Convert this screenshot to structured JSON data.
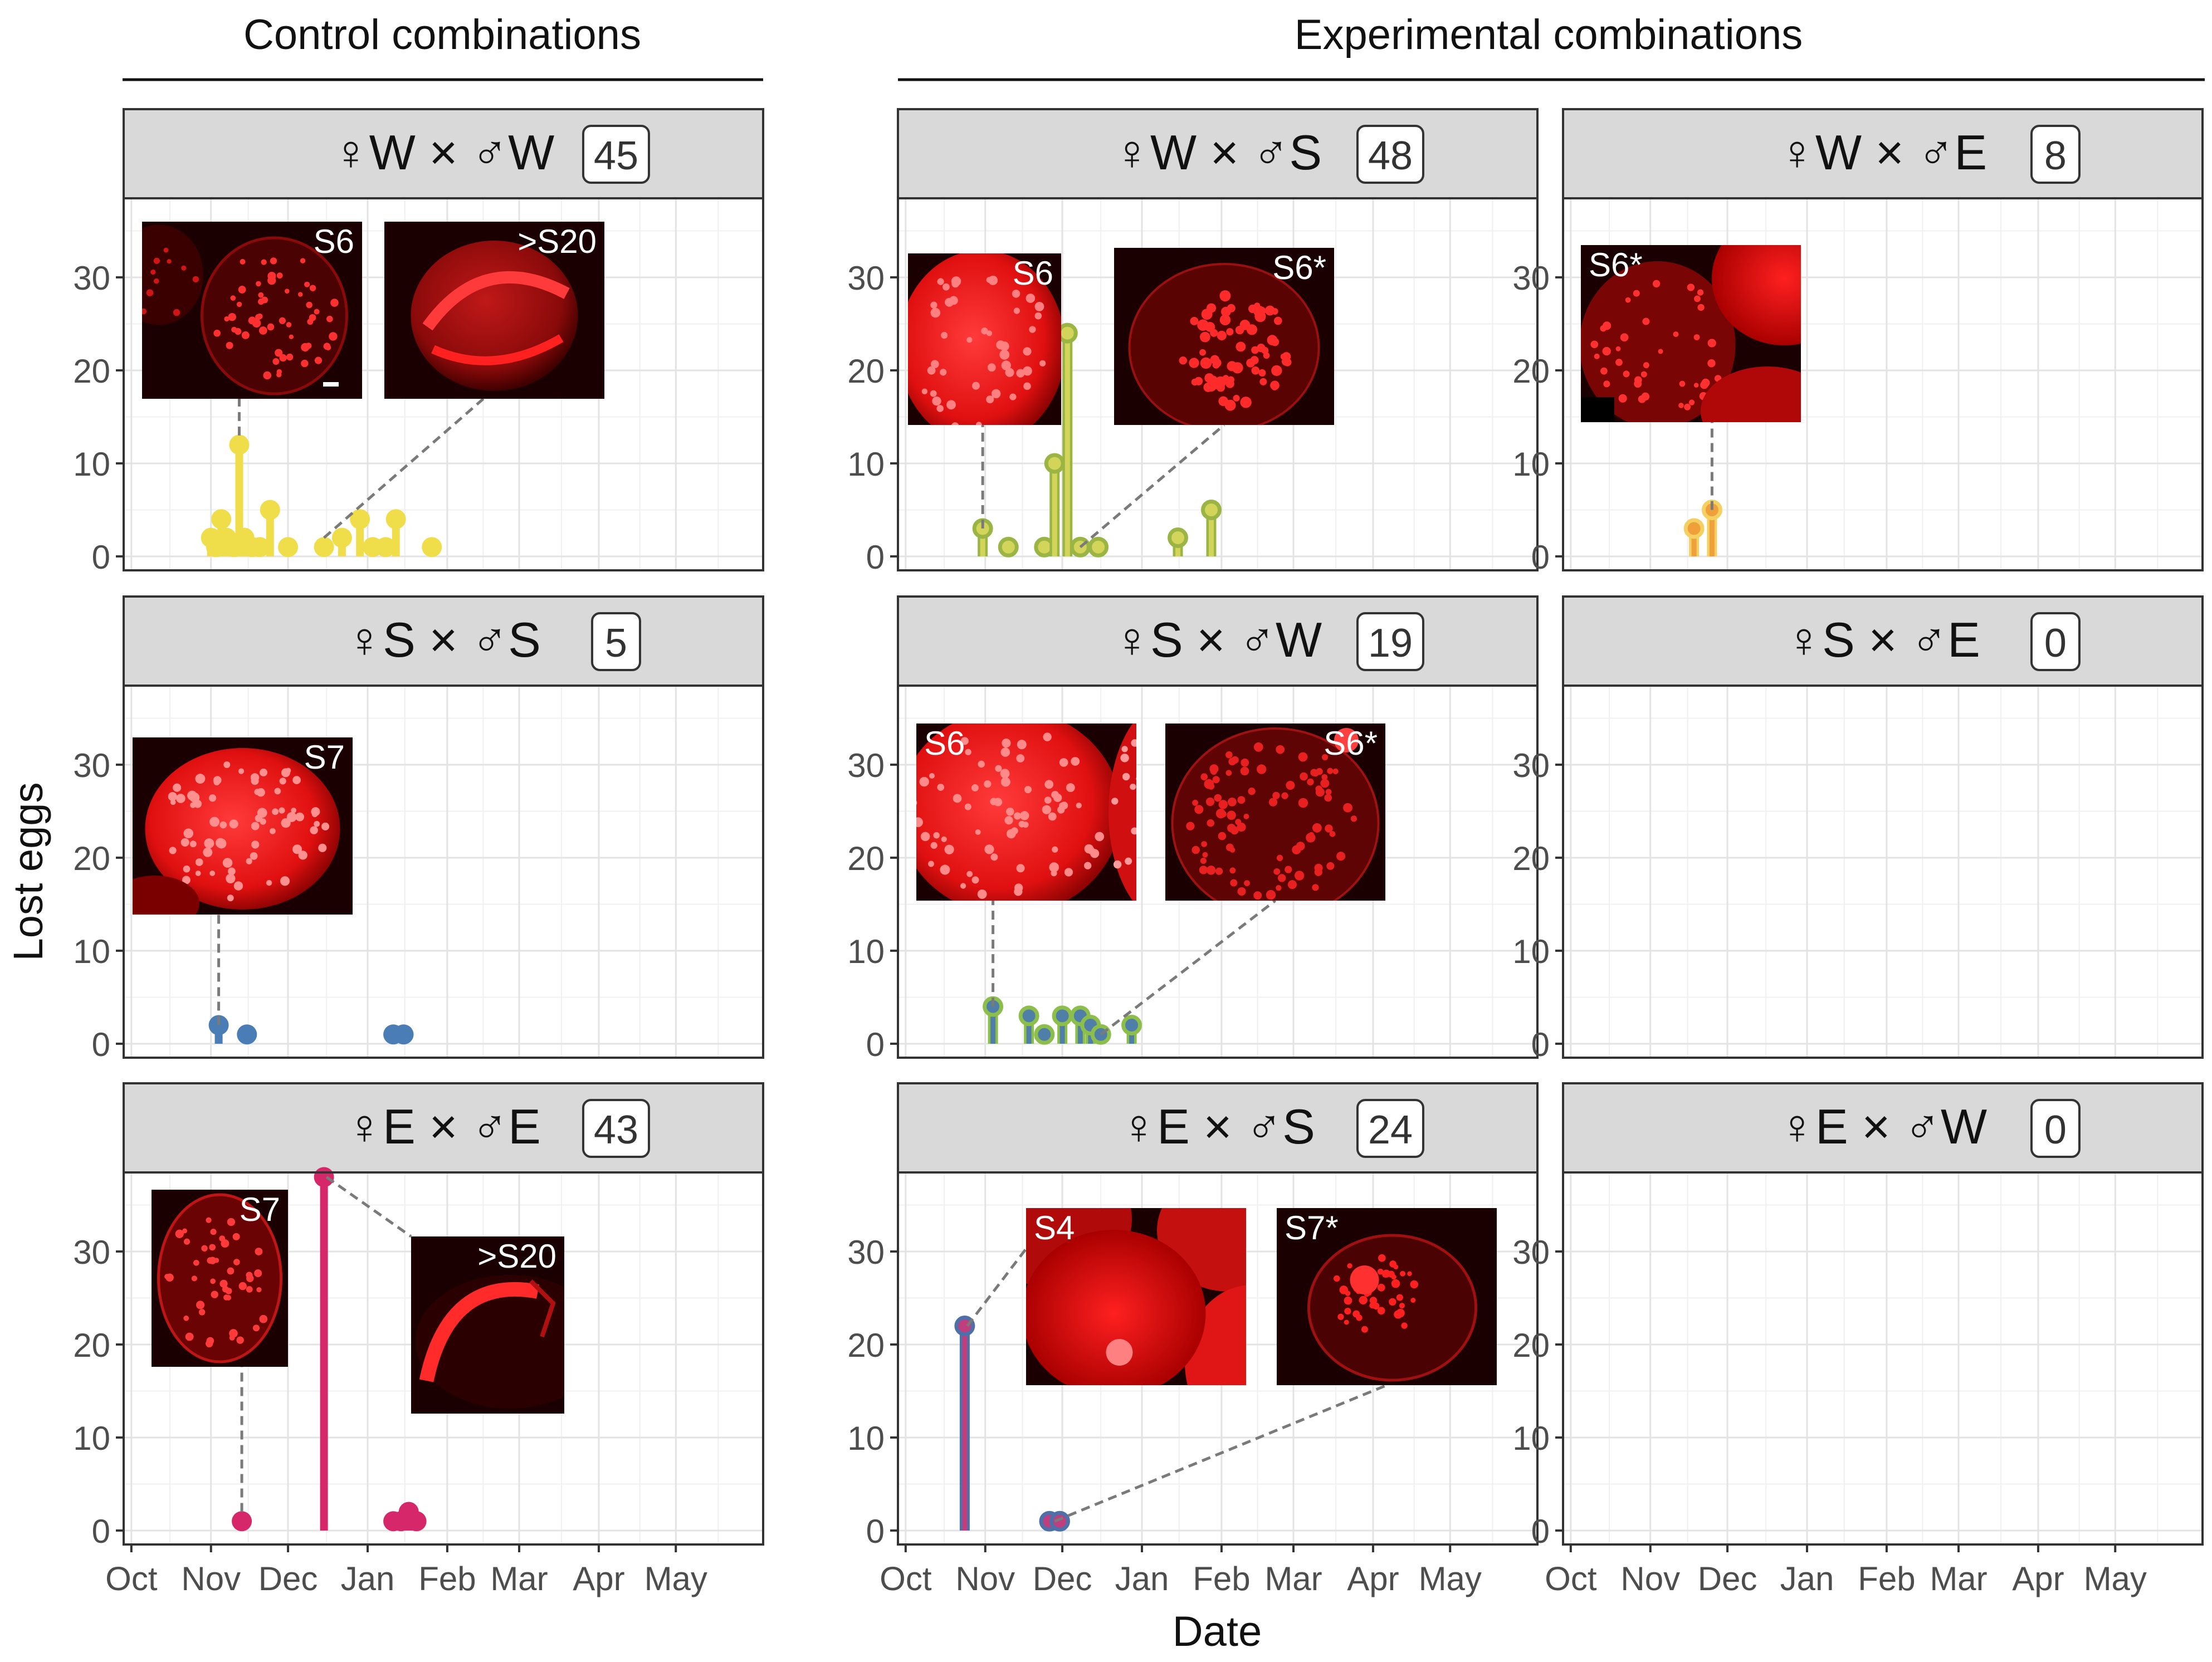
{
  "figure": {
    "y_axis_label": "Lost eggs",
    "x_axis_label": "Date",
    "group_headers": [
      "Control combinations",
      "Experimental combinations"
    ],
    "month_ticks": [
      "Oct",
      "Nov",
      "Dec",
      "Jan",
      "Feb",
      "Mar",
      "Apr",
      "May"
    ],
    "y_ticks": [
      0,
      10,
      20,
      30
    ]
  },
  "chart_data": [
    {
      "type": "lollipop",
      "id": "WxW",
      "female": "W",
      "male": "W",
      "count": "45",
      "color": "#EFDD4A",
      "outline": "#EFDD4A",
      "xlabel": "Date",
      "ylabel": "Lost eggs",
      "ylim": [
        0,
        38
      ],
      "points": [
        {
          "x": "Nov 1",
          "y": 2
        },
        {
          "x": "Nov 3",
          "y": 1
        },
        {
          "x": "Nov 5",
          "y": 4
        },
        {
          "x": "Nov 7",
          "y": 2
        },
        {
          "x": "Nov 10",
          "y": 1
        },
        {
          "x": "Nov 12",
          "y": 12
        },
        {
          "x": "Nov 14",
          "y": 2
        },
        {
          "x": "Nov 17",
          "y": 1
        },
        {
          "x": "Nov 20",
          "y": 1
        },
        {
          "x": "Nov 24",
          "y": 5
        },
        {
          "x": "Dec 1",
          "y": 1
        },
        {
          "x": "Dec 15",
          "y": 1
        },
        {
          "x": "Dec 22",
          "y": 2
        },
        {
          "x": "Dec 29",
          "y": 4
        },
        {
          "x": "Jan 3",
          "y": 1
        },
        {
          "x": "Jan 8",
          "y": 1
        },
        {
          "x": "Jan 12",
          "y": 4
        },
        {
          "x": "Jan 26",
          "y": 1
        }
      ],
      "insets": [
        {
          "label": "S6",
          "kind": "s6a",
          "x1": "Nov 12",
          "y1": 13
        },
        {
          "label": ">S20",
          "kind": "s20a",
          "x1": "Dec 15",
          "y1": 2
        }
      ]
    },
    {
      "type": "lollipop",
      "id": "WxS",
      "female": "W",
      "male": "S",
      "count": "48",
      "color": "#D2D55A",
      "outline": "#9BB545",
      "xlabel": "Date",
      "ylabel": "Lost eggs",
      "ylim": [
        0,
        38
      ],
      "points": [
        {
          "x": "Oct 31",
          "y": 3
        },
        {
          "x": "Nov 10",
          "y": 1
        },
        {
          "x": "Nov 24",
          "y": 1
        },
        {
          "x": "Nov 28",
          "y": 10
        },
        {
          "x": "Dec 3",
          "y": 24
        },
        {
          "x": "Dec 8",
          "y": 1
        },
        {
          "x": "Dec 15",
          "y": 1
        },
        {
          "x": "Jan 15",
          "y": 2
        },
        {
          "x": "Jan 28",
          "y": 5
        }
      ],
      "insets": [
        {
          "label": "S6",
          "kind": "s6b",
          "x1": "Oct 31",
          "y1": 3
        },
        {
          "label": "S6*",
          "kind": "s6star",
          "x1": "Dec 8",
          "y1": 1
        }
      ]
    },
    {
      "type": "lollipop",
      "id": "WxE",
      "female": "W",
      "male": "E",
      "count": "8",
      "color": "#F0A03A",
      "outline": "#F4D060",
      "xlabel": "Date",
      "ylabel": "Lost eggs",
      "ylim": [
        0,
        38
      ],
      "points": [
        {
          "x": "Nov 18",
          "y": 3
        },
        {
          "x": "Nov 25",
          "y": 5
        }
      ],
      "insets": [
        {
          "label": "S6*",
          "kind": "s6cluster",
          "x1": "Nov 25",
          "y1": 5
        }
      ]
    },
    {
      "type": "lollipop",
      "id": "SxS",
      "female": "S",
      "male": "S",
      "count": "5",
      "color": "#4A7DB5",
      "outline": "#4A7DB5",
      "xlabel": "Date",
      "ylabel": "Lost eggs",
      "ylim": [
        0,
        38
      ],
      "points": [
        {
          "x": "Nov 4",
          "y": 2
        },
        {
          "x": "Nov 15",
          "y": 1
        },
        {
          "x": "Jan 11",
          "y": 1
        },
        {
          "x": "Jan 15",
          "y": 1
        }
      ],
      "insets": [
        {
          "label": "S7",
          "kind": "s7a",
          "x1": "Nov 4",
          "y1": 2
        }
      ]
    },
    {
      "type": "lollipop",
      "id": "SxW",
      "female": "S",
      "male": "W",
      "count": "19",
      "color": "#4F7FA8",
      "outline": "#8CBF4A",
      "xlabel": "Date",
      "ylabel": "Lost eggs",
      "ylim": [
        0,
        38
      ],
      "points": [
        {
          "x": "Nov 4",
          "y": 4
        },
        {
          "x": "Nov 18",
          "y": 3
        },
        {
          "x": "Nov 24",
          "y": 1
        },
        {
          "x": "Dec 1",
          "y": 3
        },
        {
          "x": "Dec 8",
          "y": 3
        },
        {
          "x": "Dec 12",
          "y": 2
        },
        {
          "x": "Dec 16",
          "y": 1
        },
        {
          "x": "Dec 28",
          "y": 2
        }
      ],
      "insets": [
        {
          "label": "S6",
          "kind": "s6c",
          "x1": "Nov 4",
          "y1": 4
        },
        {
          "label": "S6*",
          "kind": "s6star2",
          "x1": "Dec 16",
          "y1": 1
        }
      ]
    },
    {
      "type": "lollipop",
      "id": "SxE",
      "female": "S",
      "male": "E",
      "count": "0",
      "color": "#888888",
      "outline": "#888888",
      "xlabel": "Date",
      "ylabel": "Lost eggs",
      "ylim": [
        0,
        38
      ],
      "points": [],
      "insets": []
    },
    {
      "type": "lollipop",
      "id": "ExE",
      "female": "E",
      "male": "E",
      "count": "43",
      "color": "#D6276A",
      "outline": "#D6276A",
      "xlabel": "Date",
      "ylabel": "Lost eggs",
      "ylim": [
        0,
        38
      ],
      "points": [
        {
          "x": "Nov 13",
          "y": 1
        },
        {
          "x": "Dec 15",
          "y": 38
        },
        {
          "x": "Jan 11",
          "y": 1
        },
        {
          "x": "Jan 14",
          "y": 1
        },
        {
          "x": "Jan 17",
          "y": 2
        },
        {
          "x": "Jan 20",
          "y": 1
        }
      ],
      "insets": [
        {
          "label": "S7",
          "kind": "s7b",
          "x1": "Nov 13",
          "y1": 2
        },
        {
          "label": ">S20",
          "kind": "s20b",
          "x1": "Dec 16",
          "y1": 38
        }
      ]
    },
    {
      "type": "lollipop",
      "id": "ExS",
      "female": "E",
      "male": "S",
      "count": "24",
      "color": "#C03D7E",
      "outline": "#4F6FA8",
      "xlabel": "Date",
      "ylabel": "Lost eggs",
      "ylim": [
        0,
        38
      ],
      "points": [
        {
          "x": "Oct 24",
          "y": 22
        },
        {
          "x": "Nov 26",
          "y": 1
        },
        {
          "x": "Nov 30",
          "y": 1
        }
      ],
      "insets": [
        {
          "label": "S4",
          "kind": "s4",
          "x1": "Oct 25",
          "y1": 22
        },
        {
          "label": "S7*",
          "kind": "s7star",
          "x1": "Nov 28",
          "y1": 1
        }
      ]
    },
    {
      "type": "lollipop",
      "id": "ExW",
      "female": "E",
      "male": "W",
      "count": "0",
      "color": "#888888",
      "outline": "#888888",
      "xlabel": "Date",
      "ylabel": "Lost eggs",
      "ylim": [
        0,
        38
      ],
      "points": [],
      "insets": []
    }
  ]
}
